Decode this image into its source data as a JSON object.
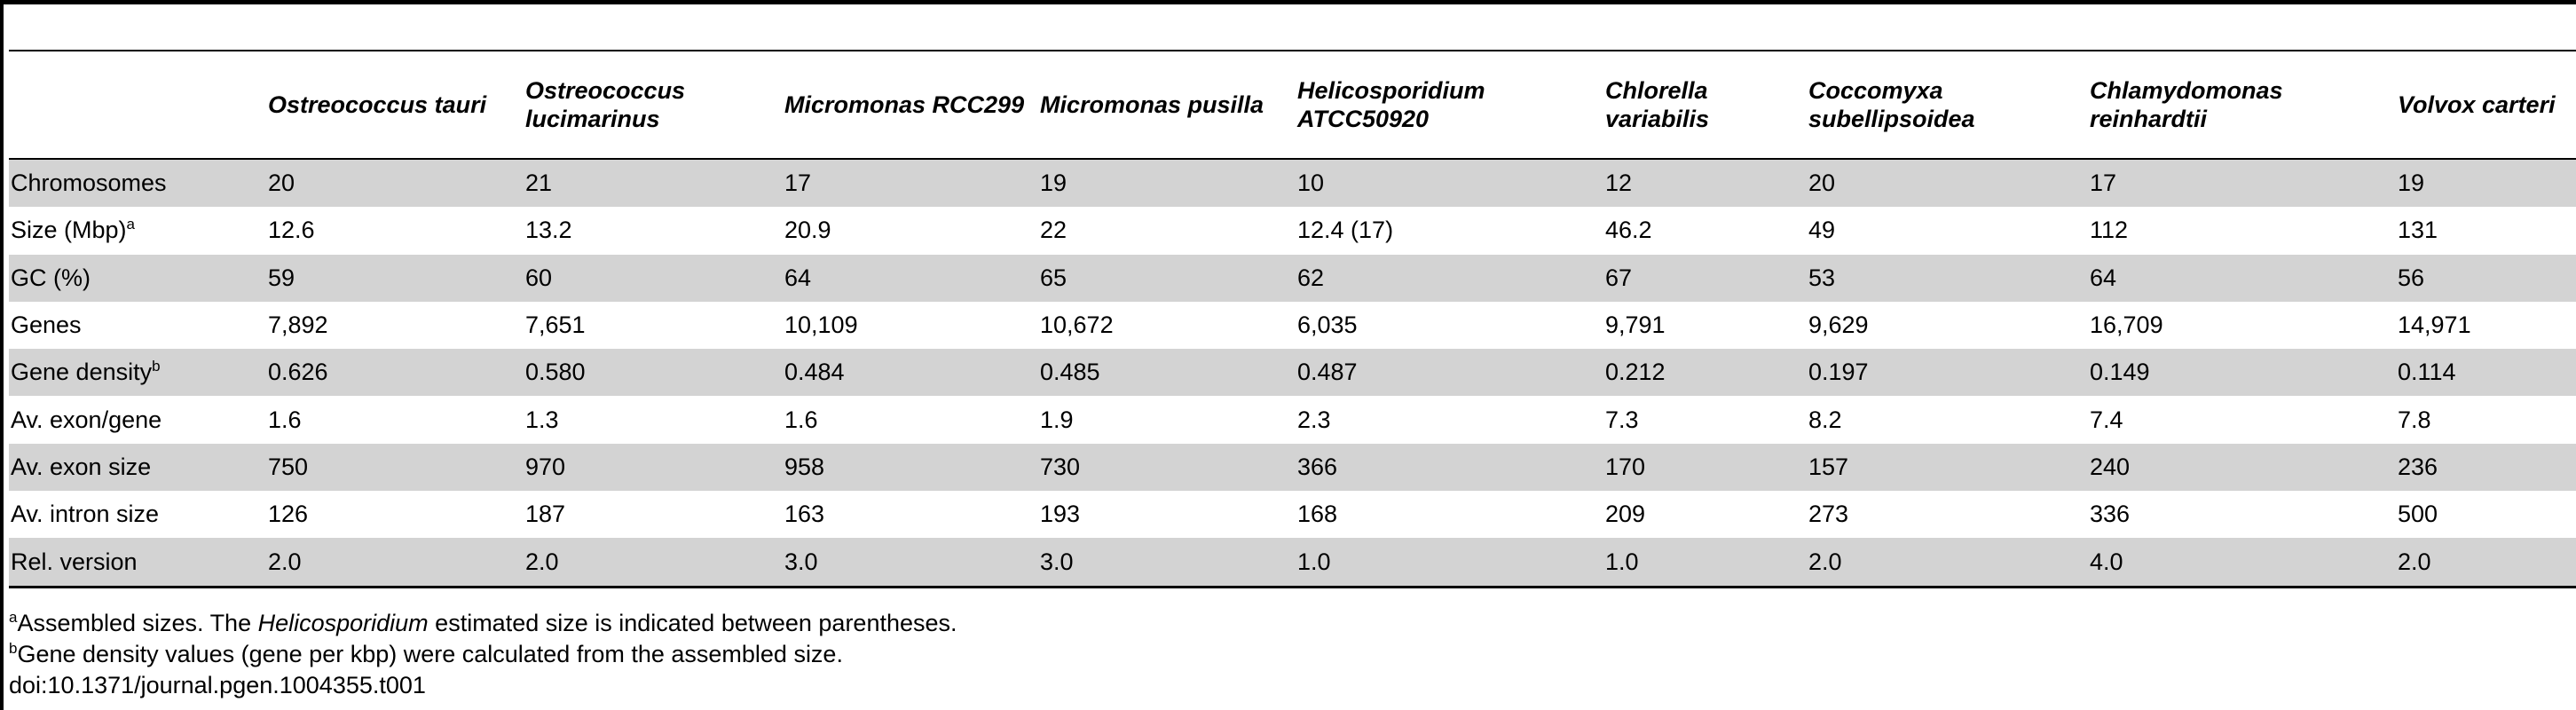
{
  "table": {
    "columns": [
      "",
      "Ostreococcus tauri",
      "Ostreococcus lucimarinus",
      "Micromonas RCC299",
      "Micromonas pusilla",
      "Helicosporidium ATCC50920",
      "Chlorella variabilis",
      "Coccomyxa subellipsoidea",
      "Chlamydomonas reinhardtii",
      "Volvox carteri"
    ],
    "rows": [
      {
        "label": "Chromosomes",
        "sup": "",
        "values": [
          "20",
          "21",
          "17",
          "19",
          "10",
          "12",
          "20",
          "17",
          "19"
        ]
      },
      {
        "label": "Size (Mbp)",
        "sup": "a",
        "values": [
          "12.6",
          "13.2",
          "20.9",
          "22",
          "12.4 (17)",
          "46.2",
          "49",
          "112",
          "131"
        ]
      },
      {
        "label": "GC (%)",
        "sup": "",
        "values": [
          "59",
          "60",
          "64",
          "65",
          "62",
          "67",
          "53",
          "64",
          "56"
        ]
      },
      {
        "label": "Genes",
        "sup": "",
        "values": [
          "7,892",
          "7,651",
          "10,109",
          "10,672",
          "6,035",
          "9,791",
          "9,629",
          "16,709",
          "14,971"
        ]
      },
      {
        "label": "Gene density",
        "sup": "b",
        "values": [
          "0.626",
          "0.580",
          "0.484",
          "0.485",
          "0.487",
          "0.212",
          "0.197",
          "0.149",
          "0.114"
        ]
      },
      {
        "label": "Av. exon/gene",
        "sup": "",
        "values": [
          "1.6",
          "1.3",
          "1.6",
          "1.9",
          "2.3",
          "7.3",
          "8.2",
          "7.4",
          "7.8"
        ]
      },
      {
        "label": "Av. exon size",
        "sup": "",
        "values": [
          "750",
          "970",
          "958",
          "730",
          "366",
          "170",
          "157",
          "240",
          "236"
        ]
      },
      {
        "label": "Av. intron size",
        "sup": "",
        "values": [
          "126",
          "187",
          "163",
          "193",
          "168",
          "209",
          "273",
          "336",
          "500"
        ]
      },
      {
        "label": "Rel. version",
        "sup": "",
        "values": [
          "2.0",
          "2.0",
          "3.0",
          "3.0",
          "1.0",
          "1.0",
          "2.0",
          "4.0",
          "2.0"
        ]
      }
    ]
  },
  "footnotes": {
    "a": {
      "mark": "a",
      "pre": "Assembled sizes. The ",
      "italic": "Helicosporidium",
      "post": " estimated size is indicated between parentheses."
    },
    "b": {
      "mark": "b",
      "text": "Gene density values (gene per kbp) were calculated from the assembled size."
    },
    "doi": "doi:10.1371/journal.pgen.1004355.t001"
  }
}
